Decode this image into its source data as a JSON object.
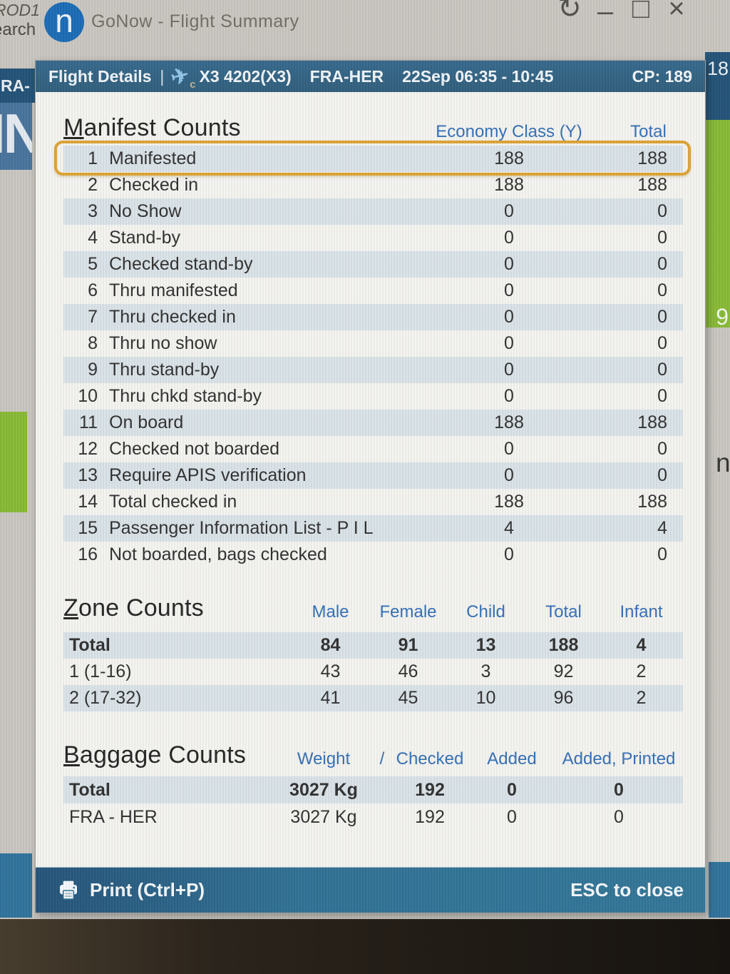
{
  "screen": {
    "titlebar": {
      "logo_letter": "n",
      "title": "GoNow - Flight Summary",
      "controls": {
        "refresh": "↻",
        "minimize": "–",
        "maximize": "□",
        "close": "×"
      }
    },
    "desktop_fragments": {
      "top_left_line1": "ROD1",
      "top_left_line2": "earch",
      "left_bar_label": "RA-H",
      "left_block_label": "IN",
      "right_strip_label": "18",
      "right_green_label": "9",
      "right_mid_label": "n"
    }
  },
  "dialog": {
    "header": {
      "title": "Flight Details",
      "separator": "|",
      "plane_icon_sub": "c",
      "flight": "X3 4202(X3)",
      "route": "FRA-HER",
      "schedule": "22Sep 06:35 - 10:45",
      "cp": "CP: 189"
    },
    "manifest": {
      "title": "Manifest Counts",
      "col_economy": "Economy Class (Y)",
      "col_total": "Total",
      "rows": [
        {
          "num": "1",
          "label": "Manifested",
          "economy": "188",
          "total": "188",
          "striped": true,
          "selected": true
        },
        {
          "num": "2",
          "label": "Checked in",
          "economy": "188",
          "total": "188"
        },
        {
          "num": "3",
          "label": "No Show",
          "economy": "0",
          "total": "0",
          "striped": true
        },
        {
          "num": "4",
          "label": "Stand-by",
          "economy": "0",
          "total": "0"
        },
        {
          "num": "5",
          "label": "Checked stand-by",
          "economy": "0",
          "total": "0",
          "striped": true
        },
        {
          "num": "6",
          "label": "Thru manifested",
          "economy": "0",
          "total": "0"
        },
        {
          "num": "7",
          "label": "Thru checked in",
          "economy": "0",
          "total": "0",
          "striped": true
        },
        {
          "num": "8",
          "label": "Thru no show",
          "economy": "0",
          "total": "0"
        },
        {
          "num": "9",
          "label": "Thru stand-by",
          "economy": "0",
          "total": "0",
          "striped": true
        },
        {
          "num": "10",
          "label": "Thru chkd stand-by",
          "economy": "0",
          "total": "0"
        },
        {
          "num": "11",
          "label": "On board",
          "economy": "188",
          "total": "188",
          "striped": true
        },
        {
          "num": "12",
          "label": "Checked not boarded",
          "economy": "0",
          "total": "0"
        },
        {
          "num": "13",
          "label": "Require APIS verification",
          "economy": "0",
          "total": "0",
          "striped": true
        },
        {
          "num": "14",
          "label": "Total checked in",
          "economy": "188",
          "total": "188"
        },
        {
          "num": "15",
          "label": "Passenger Information List - P I L",
          "economy": "4",
          "total": "4",
          "striped": true
        },
        {
          "num": "16",
          "label": "Not boarded, bags checked",
          "economy": "0",
          "total": "0"
        }
      ]
    },
    "zone": {
      "title": "Zone Counts",
      "columns": [
        "Male",
        "Female",
        "Child",
        "Total",
        "Infant"
      ],
      "rows": [
        {
          "label": "Total",
          "values": [
            "84",
            "91",
            "13",
            "188",
            "4"
          ],
          "bold": true,
          "striped": true
        },
        {
          "label": "1 (1-16)",
          "values": [
            "43",
            "46",
            "3",
            "92",
            "2"
          ]
        },
        {
          "label": "2 (17-32)",
          "values": [
            "41",
            "45",
            "10",
            "96",
            "2"
          ],
          "striped": true
        }
      ]
    },
    "baggage": {
      "title": "Baggage Counts",
      "columns": [
        "Weight",
        "/",
        "Checked",
        "Added",
        "Added, Printed"
      ],
      "rows": [
        {
          "label": "Total",
          "values": [
            "3027 Kg",
            "192",
            "0",
            "0"
          ],
          "bold": true,
          "striped": true
        },
        {
          "label": "FRA - HER",
          "values": [
            "3027 Kg",
            "192",
            "0",
            "0"
          ]
        }
      ]
    },
    "footer": {
      "print_label": "Print (Ctrl+P)",
      "esc_label": "ESC to close"
    }
  },
  "colors": {
    "dialog_header_bg": "#2a5a78",
    "dialog_footer_bg": "#2b6e92",
    "stripe": "#d9e2e8",
    "selection_border": "#dda12f",
    "column_header_blue": "#2e6cb5",
    "accent_green": "#85b830",
    "background_blue_dark": "#1d4e74"
  }
}
